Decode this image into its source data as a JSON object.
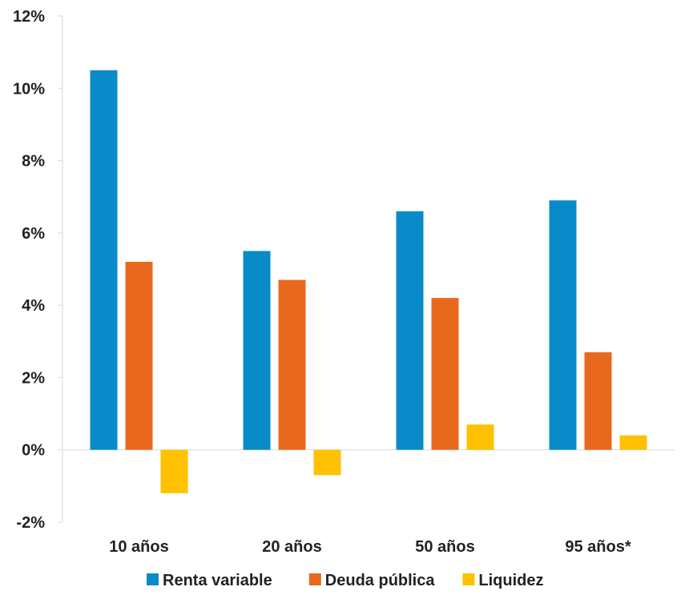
{
  "chart_data": {
    "type": "bar",
    "categories": [
      "10 años",
      "20 años",
      "50 años",
      "95 años*"
    ],
    "series": [
      {
        "name": "Renta variable",
        "color": "#0A8BC9",
        "values": [
          10.5,
          5.5,
          6.6,
          6.9
        ]
      },
      {
        "name": "Deuda pública",
        "color": "#E8691D",
        "values": [
          5.2,
          4.7,
          4.2,
          2.7
        ]
      },
      {
        "name": "Liquidez",
        "color": "#FFC000",
        "values": [
          -1.2,
          -0.7,
          0.7,
          0.4
        ]
      }
    ],
    "y_ticks": [
      "12%",
      "10%",
      "8%",
      "6%",
      "4%",
      "2%",
      "0%",
      "-2%"
    ],
    "ylim": [
      -2,
      12
    ],
    "grid": false,
    "legend_position": "bottom"
  }
}
